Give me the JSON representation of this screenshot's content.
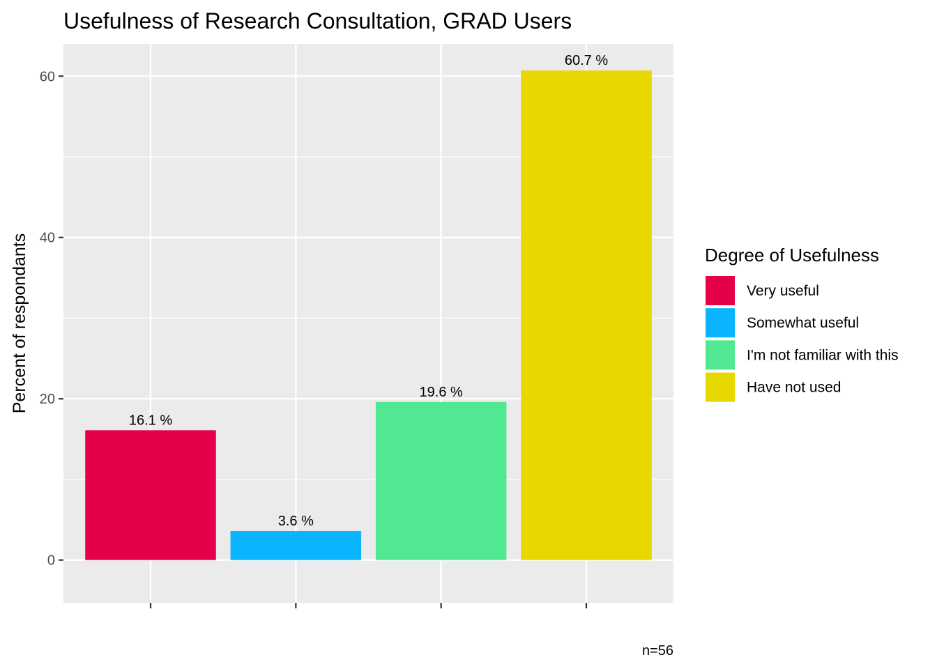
{
  "chart_data": {
    "type": "bar",
    "title": "Usefulness of Research Consultation,  GRAD Users",
    "xlabel": "",
    "ylabel": "Percent of respondants",
    "ylim": [
      -5.3,
      64
    ],
    "y_ticks": [
      0,
      20,
      40,
      60
    ],
    "y_tick_labels": [
      "0",
      "20",
      "40",
      "60"
    ],
    "grid": true,
    "categories": [
      "Very useful",
      "Somewhat useful",
      "I'm not familiar with this",
      "Have not used"
    ],
    "values": [
      16.1,
      3.6,
      19.6,
      60.7
    ],
    "data_labels": [
      "16.1 %",
      "3.6 %",
      "19.6 %",
      "60.7 %"
    ],
    "colors": [
      "#E6004A",
      "#0AB4FF",
      "#50E890",
      "#E6D800"
    ],
    "legend": {
      "title": "Degree of Usefulness",
      "placement": "right",
      "entries": [
        "Very useful",
        "Somewhat useful",
        "I'm not familiar with this",
        "Have not used"
      ]
    },
    "caption": "n=56"
  }
}
